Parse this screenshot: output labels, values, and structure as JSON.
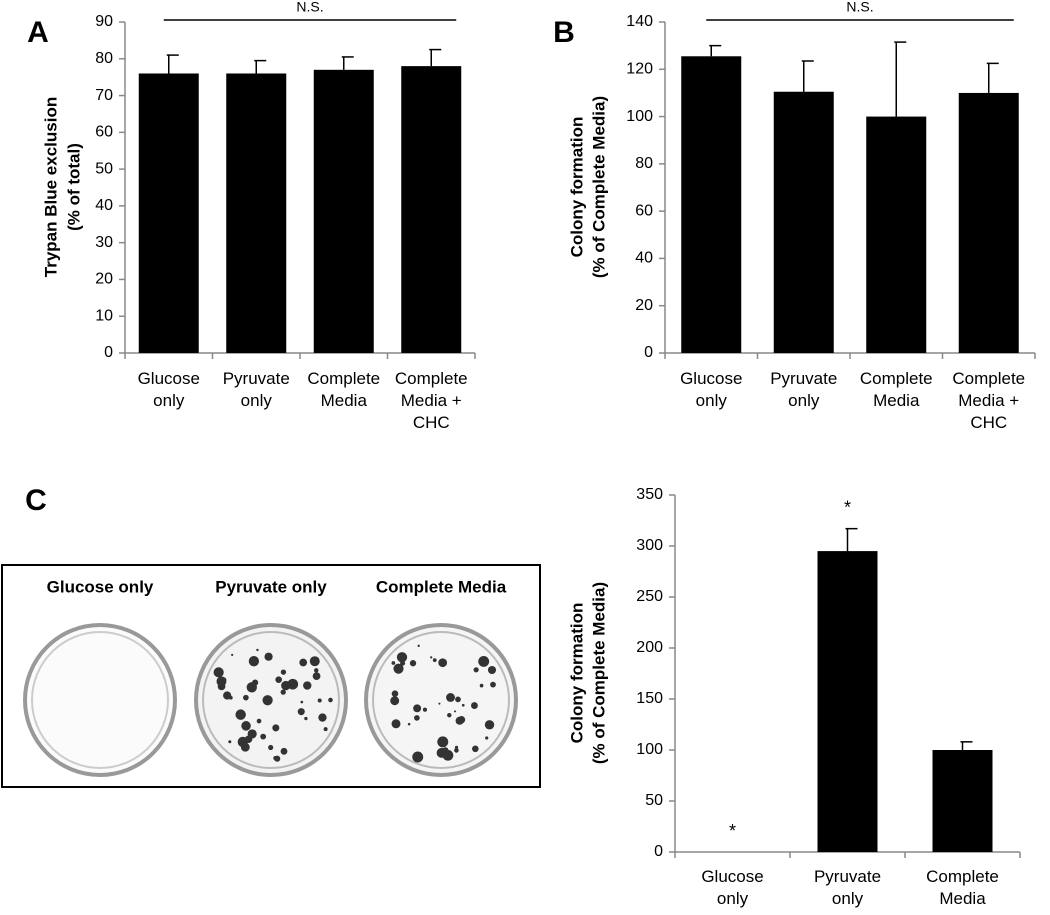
{
  "chart_data": [
    {
      "type": "bar",
      "panel_label": "A",
      "ylabel": [
        "Trypan Blue exclusion",
        "(% of total)"
      ],
      "categories": [
        "Glucose only",
        "Pyruvate only",
        "Complete Media",
        "Complete Media + CHC"
      ],
      "values": [
        76,
        76,
        77,
        78
      ],
      "errors": [
        5,
        3.5,
        3.5,
        4.5
      ],
      "color": "#000000",
      "ylim": [
        0,
        90
      ],
      "yticks": [
        0,
        10,
        20,
        30,
        40,
        50,
        60,
        70,
        80,
        90
      ],
      "significance": "N.S."
    },
    {
      "type": "bar",
      "panel_label": "B",
      "ylabel": [
        "Colony formation",
        "(% of Complete Media)"
      ],
      "categories": [
        "Glucose only",
        "Pyruvate only",
        "Complete Media",
        "Complete Media + CHC"
      ],
      "values": [
        125.5,
        110.5,
        100,
        110
      ],
      "errors": [
        4.5,
        13,
        31.5,
        12.5
      ],
      "color": "#000000",
      "ylim": [
        0,
        140
      ],
      "yticks": [
        0,
        20,
        40,
        60,
        80,
        100,
        120,
        140
      ],
      "significance": "N.S."
    },
    {
      "type": "bar",
      "panel_label": "C",
      "image_labels": [
        "Glucose only",
        "Pyruvate only",
        "Complete Media"
      ],
      "ylabel": [
        "Colony formation",
        "(% of Complete Media)"
      ],
      "categories": [
        "Glucose only",
        "Pyruvate only",
        "Complete Media"
      ],
      "values": [
        0,
        295,
        100
      ],
      "errors": [
        null,
        22,
        8
      ],
      "color": "#000000",
      "ylim": [
        0,
        350
      ],
      "yticks": [
        0,
        50,
        100,
        150,
        200,
        250,
        300,
        350
      ],
      "annotations": [
        {
          "category": "Glucose only",
          "text": "*"
        },
        {
          "category": "Pyruvate only",
          "text": "*"
        }
      ]
    }
  ]
}
